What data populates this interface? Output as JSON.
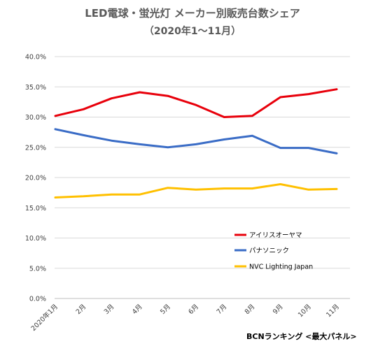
{
  "chart_title": "LED電球・蛍光灯 メーカー別販売台数シェア",
  "chart_subtitle": "（2020年1～11月）",
  "source_label": "BCNランキング <最大パネル>",
  "chart_data": {
    "type": "line",
    "title": "LED電球・蛍光灯 メーカー別販売台数シェア",
    "subtitle": "（2020年1～11月）",
    "xlabel": "",
    "ylabel": "",
    "categories": [
      "2020年1月",
      "2月",
      "3月",
      "4月",
      "5月",
      "6月",
      "7月",
      "8月",
      "9月",
      "10月",
      "11月"
    ],
    "y_ticks": [
      "0.0%",
      "5.0%",
      "10.0%",
      "15.0%",
      "20.0%",
      "25.0%",
      "30.0%",
      "35.0%",
      "40.0%"
    ],
    "ylim": [
      0,
      40
    ],
    "grid": true,
    "legend_position": "right",
    "series": [
      {
        "name": "アイリスオーヤマ",
        "color": "#e8000b",
        "values": [
          30.2,
          31.3,
          33.1,
          34.1,
          33.5,
          32.0,
          30.0,
          30.2,
          33.3,
          33.8,
          34.6
        ]
      },
      {
        "name": "パナソニック",
        "color": "#3a6cc6",
        "values": [
          28.0,
          27.0,
          26.1,
          25.5,
          25.0,
          25.5,
          26.3,
          26.9,
          24.9,
          24.9,
          24.0
        ]
      },
      {
        "name": "NVC Lighting Japan",
        "color": "#ffc000",
        "values": [
          16.7,
          16.9,
          17.2,
          17.2,
          18.3,
          18.0,
          18.2,
          18.2,
          18.9,
          18.0,
          18.1
        ]
      }
    ]
  }
}
